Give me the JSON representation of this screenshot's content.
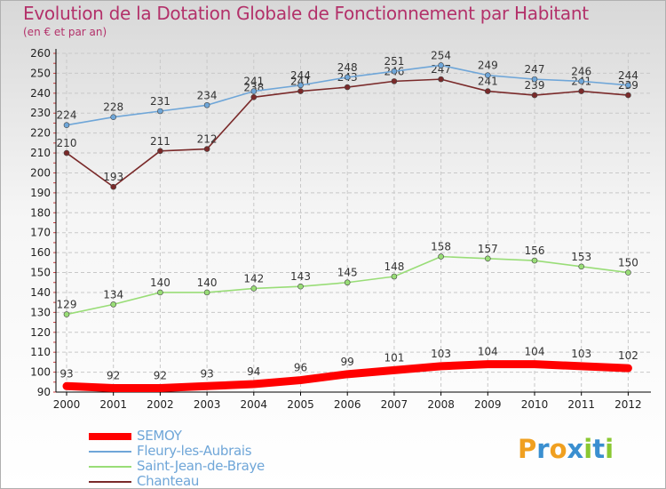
{
  "title": "Evolution de la Dotation Globale de Fonctionnement par Habitant",
  "subtitle": "(en € et par an)",
  "colors": {
    "title": "#b3316a",
    "grid": "#c8c8c8",
    "axis": "#000000"
  },
  "chart_data": {
    "type": "line",
    "x": [
      "2000",
      "2001",
      "2002",
      "2003",
      "2004",
      "2005",
      "2006",
      "2007",
      "2008",
      "2009",
      "2010",
      "2011",
      "2012"
    ],
    "ylim": [
      90,
      260
    ],
    "yticks": [
      90,
      100,
      110,
      120,
      130,
      140,
      150,
      160,
      170,
      180,
      190,
      200,
      210,
      220,
      230,
      240,
      250,
      260
    ],
    "grid": true,
    "legend_position": "bottom-left",
    "series": [
      {
        "name": "SEMOY",
        "color": "#ff0000",
        "values": [
          93,
          92,
          92,
          93,
          94,
          96,
          99,
          101,
          103,
          104,
          104,
          103,
          102
        ]
      },
      {
        "name": "Fleury-les-Aubrais",
        "color": "#6fa6d8",
        "values": [
          224,
          228,
          231,
          234,
          241,
          244,
          248,
          251,
          254,
          249,
          247,
          246,
          244
        ]
      },
      {
        "name": "Saint-Jean-de-Braye",
        "color": "#99dd77",
        "values": [
          129,
          134,
          140,
          140,
          142,
          143,
          145,
          148,
          158,
          157,
          156,
          153,
          150
        ]
      },
      {
        "name": "Chanteau",
        "color": "#7a2a2a",
        "values": [
          210,
          193,
          211,
          212,
          238,
          241,
          243,
          246,
          247,
          241,
          239,
          241,
          239
        ]
      }
    ]
  },
  "logo": {
    "letters": [
      "P",
      "r",
      "o",
      "x",
      "i",
      "t",
      "i"
    ],
    "colors": [
      "#f0a020",
      "#3a8fd0",
      "#f0a020",
      "#3a8fd0",
      "#8ac832",
      "#3a8fd0",
      "#8ac832"
    ]
  }
}
